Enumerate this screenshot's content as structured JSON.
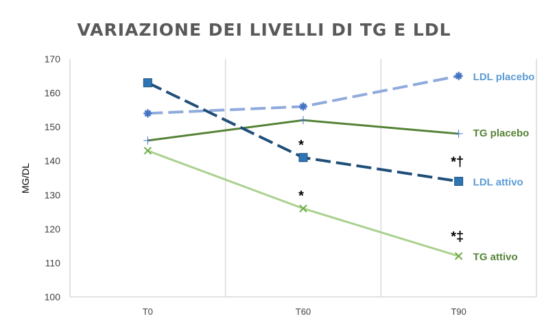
{
  "chart_data": {
    "type": "line",
    "title": "VARIAZIONE DEI LIVELLI DI TG E LDL",
    "xlabel": "",
    "ylabel": "MG/DL",
    "ylim": [
      100,
      170
    ],
    "yticks": [
      100,
      110,
      120,
      130,
      140,
      150,
      160,
      170
    ],
    "categories": [
      "T0",
      "T60",
      "T90"
    ],
    "grid": "vertical",
    "series": [
      {
        "name": "LDL placebo",
        "values": [
          154,
          156,
          165
        ],
        "color": "#8faadc",
        "label_color": "#5b9bd5",
        "marker": "star",
        "dash": true
      },
      {
        "name": "TG placebo",
        "values": [
          146,
          152,
          148
        ],
        "color": "#548235",
        "label_color": "#548235",
        "marker": "plus",
        "dash": false
      },
      {
        "name": "LDL attivo",
        "values": [
          163,
          141,
          134
        ],
        "color": "#1f4e79",
        "label_color": "#5b9bd5",
        "marker": "square",
        "dash": true
      },
      {
        "name": "TG attivo",
        "values": [
          143,
          126,
          112
        ],
        "color": "#a9d18e",
        "label_color": "#548235",
        "marker": "x",
        "dash": false
      }
    ],
    "annotations": [
      {
        "text": "*",
        "series": "LDL attivo",
        "category": "T60"
      },
      {
        "text": "*†",
        "series": "LDL attivo",
        "category": "T90"
      },
      {
        "text": "*",
        "series": "TG attivo",
        "category": "T60"
      },
      {
        "text": "*‡",
        "series": "TG attivo",
        "category": "T90"
      }
    ]
  }
}
